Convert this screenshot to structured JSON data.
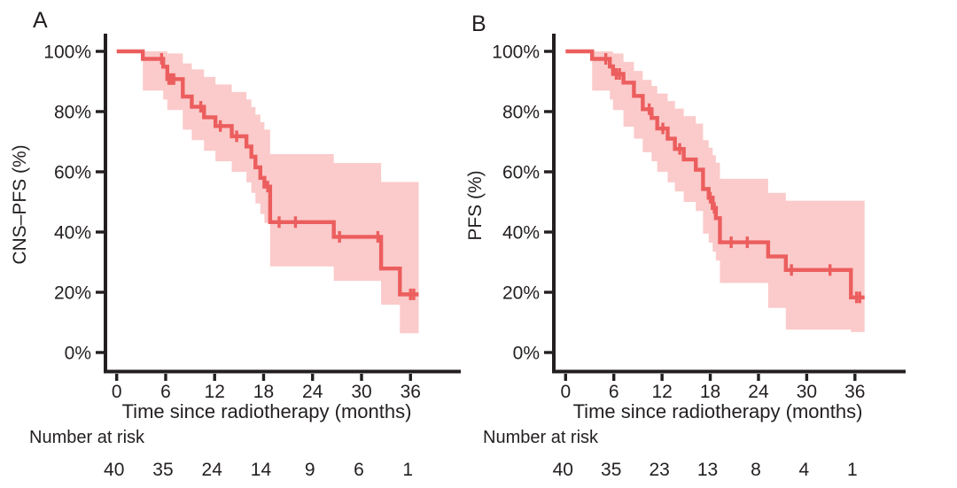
{
  "figure": {
    "panel_a_label": "A",
    "panel_b_label": "B",
    "colors": {
      "curve": "#ec5e5e",
      "band": "#fbcaca",
      "axis": "#231f20",
      "background": "#ffffff"
    }
  },
  "chart_data": [
    {
      "type": "line",
      "subtype": "kaplan-meier-step",
      "panel_label": "A",
      "ylabel": "CNS–PFS (%)",
      "xlabel": "Time since radiotherapy (months)",
      "risk_label": "Number at risk",
      "xlim": [
        0,
        42
      ],
      "ylim": [
        0,
        100
      ],
      "x_ticks": [
        0,
        6,
        12,
        18,
        24,
        30,
        36
      ],
      "y_ticks": [
        0,
        20,
        40,
        60,
        80,
        100
      ],
      "y_tick_suffix": "%",
      "grid": false,
      "legend": false,
      "number_at_risk": [
        40,
        35,
        24,
        14,
        9,
        6,
        1
      ],
      "end_time": 37.0,
      "steps": [
        [
          0,
          100
        ],
        [
          3.2,
          97.5
        ],
        [
          5.7,
          94.9
        ],
        [
          6.2,
          90.8
        ],
        [
          8.1,
          85.0
        ],
        [
          9.2,
          81.6
        ],
        [
          10.7,
          78.1
        ],
        [
          12.1,
          75.2
        ],
        [
          14.1,
          71.8
        ],
        [
          15.9,
          68.4
        ],
        [
          16.5,
          65.0
        ],
        [
          17.0,
          61.5
        ],
        [
          17.6,
          58.0
        ],
        [
          18.1,
          55.1
        ],
        [
          18.8,
          43.3
        ],
        [
          26.6,
          38.4
        ],
        [
          32.4,
          27.9
        ],
        [
          34.7,
          19.3
        ]
      ],
      "censors": [
        [
          5.5,
          97.5
        ],
        [
          6.4,
          90.8
        ],
        [
          6.7,
          90.8
        ],
        [
          7.0,
          90.8
        ],
        [
          10.3,
          81.6
        ],
        [
          12.7,
          75.2
        ],
        [
          14.7,
          71.8
        ],
        [
          18.5,
          55.1
        ],
        [
          19.9,
          43.3
        ],
        [
          21.9,
          43.3
        ],
        [
          27.3,
          38.4
        ],
        [
          32.0,
          38.4
        ],
        [
          36.0,
          19.3
        ],
        [
          36.4,
          19.3
        ]
      ],
      "band": [
        [
          3.2,
          100,
          87
        ],
        [
          5.7,
          100,
          84
        ],
        [
          6.2,
          99.3,
          80.5
        ],
        [
          8.1,
          96,
          74
        ],
        [
          9.2,
          94,
          70.5
        ],
        [
          10.7,
          91.5,
          67
        ],
        [
          12.1,
          89,
          63.5
        ],
        [
          14.1,
          86.5,
          60
        ],
        [
          15.9,
          84,
          56.5
        ],
        [
          16.5,
          81.5,
          53
        ],
        [
          17.0,
          79,
          49.5
        ],
        [
          17.6,
          76.5,
          46
        ],
        [
          18.1,
          74,
          43
        ],
        [
          18.8,
          65.9,
          28.6
        ],
        [
          26.6,
          62.9,
          23.8
        ],
        [
          32.4,
          56.6,
          15.9
        ],
        [
          34.7,
          56.6,
          6.4
        ]
      ]
    },
    {
      "type": "line",
      "subtype": "kaplan-meier-step",
      "panel_label": "B",
      "ylabel": "PFS (%)",
      "xlabel": "Time since radiotherapy (months)",
      "risk_label": "Number at risk",
      "xlim": [
        0,
        42
      ],
      "ylim": [
        0,
        100
      ],
      "x_ticks": [
        0,
        6,
        12,
        18,
        24,
        30,
        36
      ],
      "y_ticks": [
        0,
        20,
        40,
        60,
        80,
        100
      ],
      "y_tick_suffix": "%",
      "grid": false,
      "legend": false,
      "number_at_risk": [
        40,
        35,
        23,
        13,
        8,
        4,
        1
      ],
      "end_time": 37.2,
      "steps": [
        [
          0,
          100
        ],
        [
          3.3,
          97.5
        ],
        [
          5.5,
          95.0
        ],
        [
          5.9,
          92.5
        ],
        [
          7.2,
          89.6
        ],
        [
          8.5,
          85.2
        ],
        [
          9.6,
          80.8
        ],
        [
          10.7,
          77.9
        ],
        [
          11.4,
          74.4
        ],
        [
          12.7,
          71.0
        ],
        [
          13.6,
          67.6
        ],
        [
          14.7,
          64.1
        ],
        [
          16.2,
          60.7
        ],
        [
          17.1,
          54.3
        ],
        [
          17.8,
          51.4
        ],
        [
          18.3,
          48.0
        ],
        [
          18.7,
          44.6
        ],
        [
          19.2,
          36.6
        ],
        [
          25.2,
          31.9
        ],
        [
          27.4,
          27.4
        ],
        [
          35.5,
          18.3
        ]
      ],
      "censors": [
        [
          5.0,
          97.5
        ],
        [
          6.3,
          92.5
        ],
        [
          6.7,
          92.5
        ],
        [
          10.4,
          80.8
        ],
        [
          12.1,
          74.4
        ],
        [
          14.2,
          67.6
        ],
        [
          18.0,
          51.4
        ],
        [
          18.5,
          48.0
        ],
        [
          20.6,
          36.6
        ],
        [
          22.6,
          36.6
        ],
        [
          28.1,
          27.4
        ],
        [
          32.9,
          27.4
        ],
        [
          36.2,
          18.3
        ],
        [
          36.6,
          18.3
        ]
      ],
      "band": [
        [
          3.3,
          100,
          87
        ],
        [
          5.5,
          100,
          84
        ],
        [
          5.9,
          99.3,
          80.5
        ],
        [
          7.2,
          96.5,
          75
        ],
        [
          8.5,
          93.5,
          71
        ],
        [
          9.6,
          90.5,
          66.5
        ],
        [
          10.7,
          88.5,
          63.5
        ],
        [
          11.4,
          86,
          60
        ],
        [
          12.7,
          83.5,
          56.5
        ],
        [
          13.6,
          81,
          53.5
        ],
        [
          14.7,
          78.5,
          50
        ],
        [
          16.2,
          76,
          47
        ],
        [
          17.1,
          70.5,
          39.5
        ],
        [
          17.8,
          68,
          36.5
        ],
        [
          18.3,
          65.5,
          33.5
        ],
        [
          18.7,
          63,
          30.5
        ],
        [
          19.2,
          57.7,
          23.1
        ],
        [
          25.2,
          53.0,
          14.8
        ],
        [
          27.4,
          50.4,
          7.6
        ],
        [
          35.5,
          50.4,
          6.8
        ]
      ]
    }
  ]
}
